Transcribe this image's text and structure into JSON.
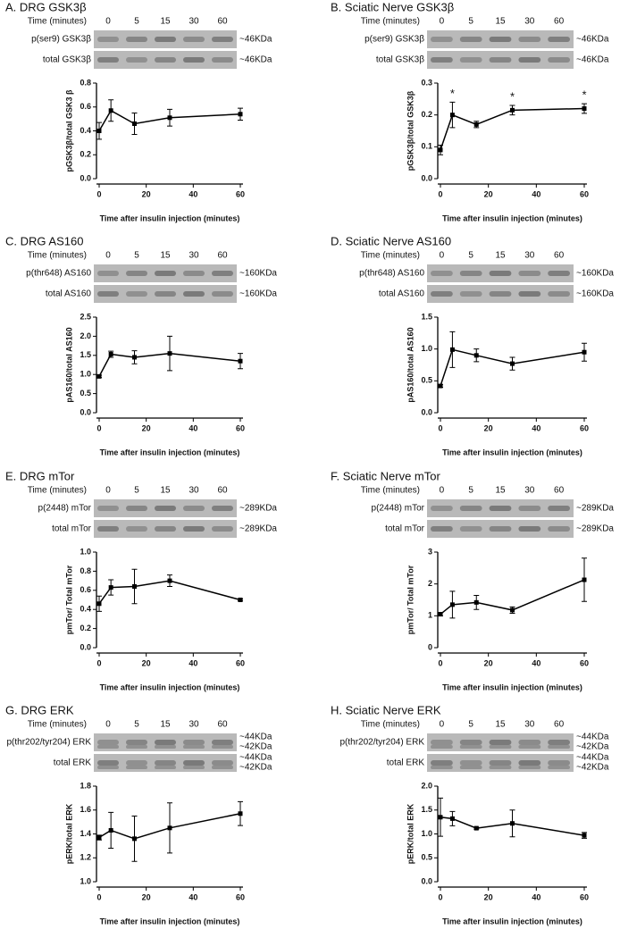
{
  "chart_data": [
    {
      "type": "line",
      "title": "A. DRG GSK3β",
      "y_label": "pGSK3β/total GSK3 β",
      "x_label": "Time after insulin injection (minutes)",
      "blot": {
        "time_label": "Time (minutes)",
        "lanes": [
          "0",
          "5",
          "15",
          "30",
          "60"
        ],
        "rows": [
          {
            "label": "p(ser9) GSK3β",
            "sizes": [
              "~46KDa"
            ]
          },
          {
            "label": "total GSK3β",
            "sizes": [
              "~46KDa"
            ]
          }
        ]
      },
      "x": [
        0,
        5,
        15,
        30,
        60
      ],
      "series": [
        {
          "values": [
            0.4,
            0.57,
            0.46,
            0.51,
            0.54
          ],
          "errors": [
            0.07,
            0.09,
            0.09,
            0.07,
            0.05
          ],
          "color": "#000000"
        }
      ],
      "xlim": [
        0,
        60
      ],
      "xticks": [
        0,
        20,
        40,
        60
      ],
      "ylim": [
        0,
        0.8
      ],
      "yticks": [
        {
          "value": 0,
          "label": "0.0"
        },
        0.2,
        0.4,
        0.6,
        0.8
      ]
    },
    {
      "type": "line",
      "title": "B. Sciatic Nerve GSK3β",
      "y_label": "pGSK3β/total GSK3β",
      "x_label": "Time after insulin injection (minutes)",
      "blot": {
        "time_label": "Time (minutes)",
        "lanes": [
          "0",
          "5",
          "15",
          "30",
          "60"
        ],
        "rows": [
          {
            "label": "p(ser9) GSK3β",
            "sizes": [
              "~46KDa"
            ]
          },
          {
            "label": "total GSK3β",
            "sizes": [
              "~46KDa"
            ]
          }
        ]
      },
      "x": [
        0,
        5,
        15,
        30,
        60
      ],
      "series": [
        {
          "values": [
            0.09,
            0.2,
            0.17,
            0.215,
            0.22
          ],
          "errors": [
            0.015,
            0.04,
            0.01,
            0.015,
            0.015
          ],
          "color": "#000000"
        }
      ],
      "annotations": [
        {
          "x": 5,
          "text": "*"
        },
        {
          "x": 30,
          "text": "*"
        },
        {
          "x": 60,
          "text": "*"
        }
      ],
      "xlim": [
        0,
        60
      ],
      "xticks": [
        0,
        20,
        40,
        60
      ],
      "ylim": [
        0,
        0.3
      ],
      "yticks": [
        {
          "value": 0,
          "label": "0.0"
        },
        0.1,
        0.2,
        0.3
      ]
    },
    {
      "type": "line",
      "title": "C. DRG AS160",
      "y_label": "pAS160/total AS160",
      "x_label": "Time after insulin injection (minutes)",
      "blot": {
        "time_label": "Time (minutes)",
        "lanes": [
          "0",
          "5",
          "15",
          "30",
          "60"
        ],
        "rows": [
          {
            "label": "p(thr648) AS160",
            "sizes": [
              "~160KDa"
            ]
          },
          {
            "label": "total AS160",
            "sizes": [
              "~160KDa"
            ]
          }
        ]
      },
      "x": [
        0,
        5,
        15,
        30,
        60
      ],
      "series": [
        {
          "values": [
            0.95,
            1.53,
            1.45,
            1.55,
            1.35
          ],
          "errors": [
            0.03,
            0.08,
            0.17,
            0.45,
            0.2
          ],
          "color": "#000000"
        }
      ],
      "xlim": [
        0,
        60
      ],
      "xticks": [
        0,
        20,
        40,
        60
      ],
      "ylim": [
        0,
        2.5
      ],
      "yticks": [
        {
          "value": 0,
          "label": "0.0"
        },
        0.5,
        {
          "value": 1,
          "label": "1.0"
        },
        1.5,
        {
          "value": 2,
          "label": "2.0"
        },
        2.5
      ]
    },
    {
      "type": "line",
      "title": "D. Sciatic Nerve AS160",
      "y_label": "pAS160/total AS160",
      "x_label": "Time after insulin injection (minutes)",
      "blot": {
        "time_label": "Time (minutes)",
        "lanes": [
          "0",
          "5",
          "15",
          "30",
          "60"
        ],
        "rows": [
          {
            "label": "p(thr648) AS160",
            "sizes": [
              "~160KDa"
            ]
          },
          {
            "label": "total AS160",
            "sizes": [
              "~160KDa"
            ]
          }
        ]
      },
      "x": [
        0,
        5,
        15,
        30,
        60
      ],
      "series": [
        {
          "values": [
            0.42,
            0.99,
            0.9,
            0.77,
            0.95
          ],
          "errors": [
            0.02,
            0.28,
            0.1,
            0.1,
            0.14
          ],
          "color": "#000000"
        }
      ],
      "xlim": [
        0,
        60
      ],
      "xticks": [
        0,
        20,
        40,
        60
      ],
      "ylim": [
        0,
        1.5
      ],
      "yticks": [
        {
          "value": 0,
          "label": "0.0"
        },
        0.5,
        {
          "value": 1,
          "label": "1.0"
        },
        1.5
      ]
    },
    {
      "type": "line",
      "title": "E. DRG mTor",
      "y_label": "pmTor/ Total mTor",
      "x_label": "Time after insulin injection (minutes)",
      "blot": {
        "time_label": "Time (minutes)",
        "lanes": [
          "0",
          "5",
          "15",
          "30",
          "60"
        ],
        "rows": [
          {
            "label": "p(2448) mTor",
            "sizes": [
              "~289KDa"
            ]
          },
          {
            "label": "total mTor",
            "sizes": [
              "~289KDa"
            ]
          }
        ]
      },
      "x": [
        0,
        5,
        15,
        30,
        60
      ],
      "series": [
        {
          "values": [
            0.46,
            0.63,
            0.64,
            0.7,
            0.5
          ],
          "errors": [
            0.08,
            0.08,
            0.18,
            0.06,
            0.01
          ],
          "color": "#000000"
        }
      ],
      "xlim": [
        0,
        60
      ],
      "xticks": [
        0,
        20,
        40,
        60
      ],
      "ylim": [
        0,
        1
      ],
      "yticks": [
        {
          "value": 0,
          "label": "0.0"
        },
        0.2,
        0.4,
        0.6,
        0.8,
        {
          "value": 1,
          "label": "1.0"
        }
      ]
    },
    {
      "type": "line",
      "title": "F. Sciatic Nerve mTor",
      "y_label": "pmTor/ Total mTor",
      "x_label": "Time after insulin injection (minutes)",
      "blot": {
        "time_label": "Time (minutes)",
        "lanes": [
          "0",
          "5",
          "15",
          "30",
          "60"
        ],
        "rows": [
          {
            "label": "p(2448) mTor",
            "sizes": [
              "~289KDa"
            ]
          },
          {
            "label": "total mTor",
            "sizes": [
              "~289KDa"
            ]
          }
        ]
      },
      "x": [
        0,
        5,
        15,
        30,
        60
      ],
      "series": [
        {
          "values": [
            1.05,
            1.35,
            1.42,
            1.18,
            2.13
          ],
          "errors": [
            0.05,
            0.42,
            0.22,
            0.1,
            0.68
          ],
          "color": "#000000"
        }
      ],
      "xlim": [
        0,
        60
      ],
      "xticks": [
        0,
        20,
        40,
        60
      ],
      "ylim": [
        0,
        3
      ],
      "yticks": [
        0,
        1,
        2,
        3
      ]
    },
    {
      "type": "line",
      "title": "G. DRG ERK",
      "y_label": "pERK/total ERK",
      "x_label": "Time after insulin injection (minutes)",
      "blot": {
        "time_label": "Time (minutes)",
        "lanes": [
          "0",
          "5",
          "15",
          "30",
          "60"
        ],
        "rows": [
          {
            "label": "p(thr202/tyr204) ERK",
            "sizes": [
              "~44KDa",
              "~42KDa"
            ]
          },
          {
            "label": "total ERK",
            "sizes": [
              "~44KDa",
              "~42KDa"
            ]
          }
        ]
      },
      "x": [
        0,
        5,
        15,
        30,
        60
      ],
      "series": [
        {
          "values": [
            1.37,
            1.43,
            1.36,
            1.45,
            1.57
          ],
          "errors": [
            0.02,
            0.15,
            0.19,
            0.21,
            0.1
          ],
          "color": "#000000"
        }
      ],
      "xlim": [
        0,
        60
      ],
      "xticks": [
        0,
        20,
        40,
        60
      ],
      "ylim": [
        1,
        1.8
      ],
      "yticks": [
        {
          "value": 1,
          "label": "1.0"
        },
        1.2,
        1.4,
        1.6,
        1.8
      ]
    },
    {
      "type": "line",
      "title": "H. Sciatic Nerve ERK",
      "y_label": "pERK/total ERK",
      "x_label": "Time after insulin injection (minutes)",
      "blot": {
        "time_label": "Time (minutes)",
        "lanes": [
          "0",
          "5",
          "15",
          "30",
          "60"
        ],
        "rows": [
          {
            "label": "p(thr202/tyr204) ERK",
            "sizes": [
              "~44KDa",
              "~42KDa"
            ]
          },
          {
            "label": "total ERK",
            "sizes": [
              "~44KDa",
              "~42KDa"
            ]
          }
        ]
      },
      "x": [
        0,
        5,
        15,
        30,
        60
      ],
      "series": [
        {
          "values": [
            1.35,
            1.32,
            1.12,
            1.22,
            0.97
          ],
          "errors": [
            0.4,
            0.15,
            0.02,
            0.28,
            0.06
          ],
          "color": "#000000"
        }
      ],
      "xlim": [
        0,
        60
      ],
      "xticks": [
        0,
        20,
        40,
        60
      ],
      "ylim": [
        0,
        2
      ],
      "yticks": [
        {
          "value": 0,
          "label": "0.0"
        },
        0.5,
        {
          "value": 1,
          "label": "1.0"
        },
        1.5,
        {
          "value": 2,
          "label": "2.0"
        }
      ]
    }
  ]
}
